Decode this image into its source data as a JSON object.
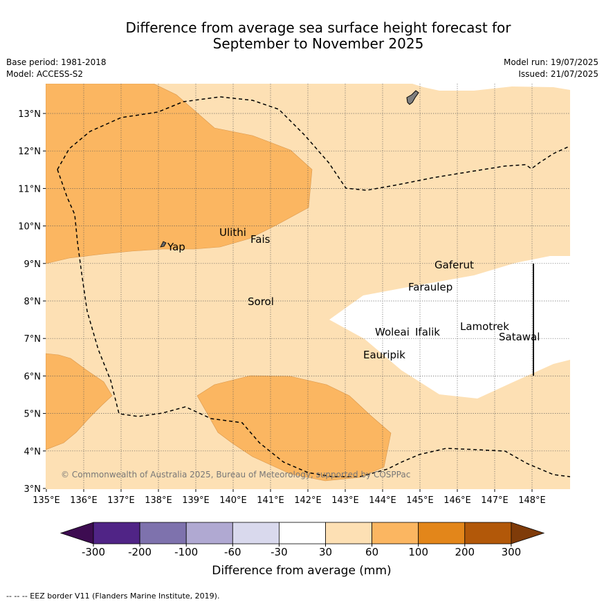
{
  "header": {
    "title_line1": "Difference from average sea surface height forecast for",
    "title_line2": "September to November 2025",
    "base_period": "Base period: 1981-2018",
    "model": "Model: ACCESS-S2",
    "model_run": "Model run: 19/07/2025",
    "issued": "Issued: 21/07/2025"
  },
  "map": {
    "lon_labels": [
      "135°E",
      "136°E",
      "137°E",
      "138°E",
      "139°E",
      "140°E",
      "141°E",
      "142°E",
      "143°E",
      "144°E",
      "145°E",
      "146°E",
      "147°E",
      "148°E"
    ],
    "lat_labels": [
      "3°N",
      "4°N",
      "5°N",
      "6°N",
      "7°N",
      "8°N",
      "9°N",
      "10°N",
      "11°N",
      "12°N",
      "13°N"
    ],
    "places": [
      {
        "name": "Yap"
      },
      {
        "name": "Ulithi"
      },
      {
        "name": "Fais"
      },
      {
        "name": "Sorol"
      },
      {
        "name": "Gaferut"
      },
      {
        "name": "Faraulep"
      },
      {
        "name": "Woleai"
      },
      {
        "name": "Ifalik"
      },
      {
        "name": "Lamotrek"
      },
      {
        "name": "Satawal"
      },
      {
        "name": "Eauripik"
      }
    ],
    "copyright": "© Commonwealth of Australia 2025, Bureau of Meteorology, supported by COSPPac"
  },
  "legend": {
    "title": "Difference from average (mm)",
    "ticks": [
      "-300",
      "-200",
      "-100",
      "-60",
      "-30",
      "30",
      "60",
      "100",
      "200",
      "300"
    ],
    "colors": [
      "#3d0c51",
      "#502486",
      "#7e72ad",
      "#b0a9d2",
      "#d9d9ed",
      "#ffffff",
      "#fde0b4",
      "#fbb661",
      "#e3861a",
      "#b25809",
      "#7f3b09"
    ]
  },
  "footer": {
    "eez_note": "--  --  -- EEZ border V11 (Flanders Marine Institute, 2019)."
  }
}
